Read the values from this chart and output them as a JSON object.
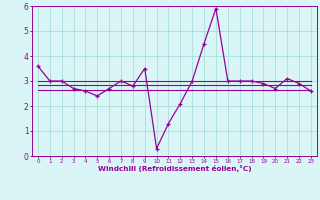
{
  "x": [
    0,
    1,
    2,
    3,
    4,
    5,
    6,
    7,
    8,
    9,
    10,
    11,
    12,
    13,
    14,
    15,
    16,
    17,
    18,
    19,
    20,
    21,
    22,
    23
  ],
  "y_main": [
    3.6,
    3.0,
    3.0,
    2.7,
    2.6,
    2.4,
    2.7,
    3.0,
    2.8,
    3.5,
    0.3,
    1.3,
    2.1,
    3.0,
    4.5,
    5.9,
    3.0,
    3.0,
    3.0,
    2.9,
    2.7,
    3.1,
    2.9,
    2.6
  ],
  "y_upper": [
    3.0,
    3.0,
    3.0,
    3.0,
    3.0,
    3.0,
    3.0,
    3.0,
    3.0,
    3.0,
    3.0,
    3.0,
    3.0,
    3.0,
    3.0,
    3.0,
    3.0,
    3.0,
    3.0,
    3.0,
    3.0,
    3.0,
    3.0,
    3.0
  ],
  "y_mid": [
    2.85,
    2.85,
    2.85,
    2.85,
    2.85,
    2.85,
    2.85,
    2.85,
    2.85,
    2.85,
    2.85,
    2.85,
    2.85,
    2.85,
    2.85,
    2.85,
    2.85,
    2.85,
    2.85,
    2.85,
    2.85,
    2.85,
    2.85,
    2.85
  ],
  "y_lower": [
    2.65,
    2.65,
    2.65,
    2.65,
    2.65,
    2.65,
    2.65,
    2.65,
    2.65,
    2.65,
    2.65,
    2.65,
    2.65,
    2.65,
    2.65,
    2.65,
    2.65,
    2.65,
    2.65,
    2.65,
    2.65,
    2.65,
    2.65,
    2.65
  ],
  "line_color": "#990099",
  "bg_color": "#d9f5f5",
  "grid_color": "#aadddd",
  "xlabel": "Windchill (Refroidissement éolien,°C)",
  "ylim": [
    0,
    6
  ],
  "xlim": [
    -0.5,
    23.5
  ],
  "yticks": [
    0,
    1,
    2,
    3,
    4,
    5,
    6
  ],
  "xticks": [
    0,
    1,
    2,
    3,
    4,
    5,
    6,
    7,
    8,
    9,
    10,
    11,
    12,
    13,
    14,
    15,
    16,
    17,
    18,
    19,
    20,
    21,
    22,
    23
  ]
}
